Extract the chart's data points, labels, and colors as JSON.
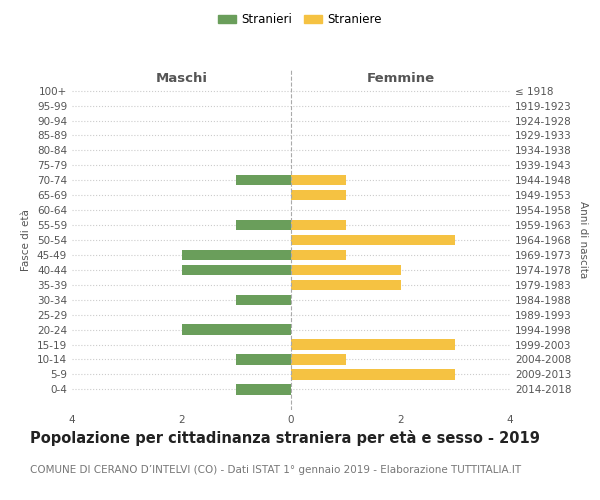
{
  "age_groups": [
    "100+",
    "95-99",
    "90-94",
    "85-89",
    "80-84",
    "75-79",
    "70-74",
    "65-69",
    "60-64",
    "55-59",
    "50-54",
    "45-49",
    "40-44",
    "35-39",
    "30-34",
    "25-29",
    "20-24",
    "15-19",
    "10-14",
    "5-9",
    "0-4"
  ],
  "birth_years": [
    "≤ 1918",
    "1919-1923",
    "1924-1928",
    "1929-1933",
    "1934-1938",
    "1939-1943",
    "1944-1948",
    "1949-1953",
    "1954-1958",
    "1959-1963",
    "1964-1968",
    "1969-1973",
    "1974-1978",
    "1979-1983",
    "1984-1988",
    "1989-1993",
    "1994-1998",
    "1999-2003",
    "2004-2008",
    "2009-2013",
    "2014-2018"
  ],
  "maschi": [
    0,
    0,
    0,
    0,
    0,
    0,
    1,
    0,
    0,
    1,
    0,
    2,
    2,
    0,
    1,
    0,
    2,
    0,
    1,
    0,
    1
  ],
  "femmine": [
    0,
    0,
    0,
    0,
    0,
    0,
    1,
    1,
    0,
    1,
    3,
    1,
    2,
    2,
    0,
    0,
    0,
    3,
    1,
    3,
    0
  ],
  "color_maschi": "#6a9e5b",
  "color_femmine": "#f5c242",
  "title": "Popolazione per cittadinanza straniera per età e sesso - 2019",
  "subtitle": "COMUNE DI CERANO D’INTELVI (CO) - Dati ISTAT 1° gennaio 2019 - Elaborazione TUTTITALIA.IT",
  "xlabel_left": "Maschi",
  "xlabel_right": "Femmine",
  "ylabel_left": "Fasce di età",
  "ylabel_right": "Anni di nascita",
  "legend_maschi": "Stranieri",
  "legend_femmine": "Straniere",
  "xlim": 4,
  "background_color": "#ffffff",
  "grid_color": "#cccccc",
  "bar_height": 0.7,
  "title_fontsize": 10.5,
  "subtitle_fontsize": 7.5,
  "tick_fontsize": 7.5,
  "label_fontsize": 9.5
}
